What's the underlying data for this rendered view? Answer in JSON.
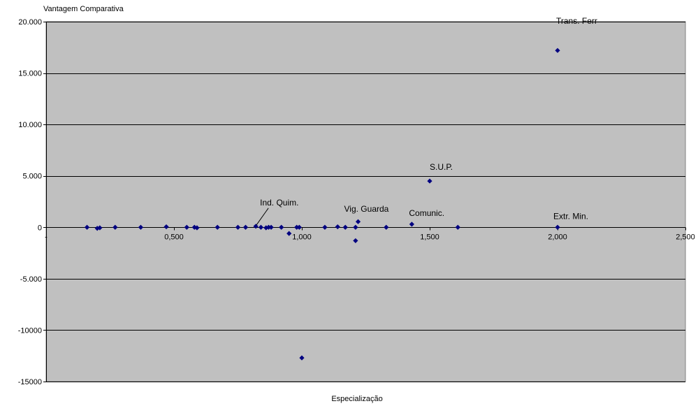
{
  "chart_data": {
    "type": "scatter",
    "title": "",
    "xlabel": "Especialização",
    "ylabel": "Vantagem Comparativa",
    "xlim": [
      0,
      2.5
    ],
    "ylim": [
      -15000,
      20000
    ],
    "x_ticks": [
      {
        "value": 0,
        "label": "-"
      },
      {
        "value": 0.5,
        "label": "0,500"
      },
      {
        "value": 1.0,
        "label": "1,000"
      },
      {
        "value": 1.5,
        "label": "1,500"
      },
      {
        "value": 2.0,
        "label": "2,000"
      },
      {
        "value": 2.5,
        "label": "2,500"
      }
    ],
    "y_ticks": [
      {
        "value": 20000,
        "label": "20.000"
      },
      {
        "value": 15000,
        "label": "15.000"
      },
      {
        "value": 10000,
        "label": "10.000"
      },
      {
        "value": 5000,
        "label": "5.000"
      },
      {
        "value": 0,
        "label": "0"
      },
      {
        "value": -5000,
        "label": "-5.000"
      },
      {
        "value": -10000,
        "label": "-10000"
      },
      {
        "value": -15000,
        "label": "-15000"
      }
    ],
    "grid": true,
    "plot_bg": "#c0c0c0",
    "marker_color": "#000080",
    "points": [
      {
        "x": 0.16,
        "y": 0
      },
      {
        "x": 0.2,
        "y": -100
      },
      {
        "x": 0.21,
        "y": -50
      },
      {
        "x": 0.27,
        "y": 0
      },
      {
        "x": 0.37,
        "y": 0
      },
      {
        "x": 0.47,
        "y": 50
      },
      {
        "x": 0.55,
        "y": 0
      },
      {
        "x": 0.58,
        "y": 0
      },
      {
        "x": 0.59,
        "y": -50
      },
      {
        "x": 0.67,
        "y": 0
      },
      {
        "x": 0.75,
        "y": 0
      },
      {
        "x": 0.78,
        "y": 0
      },
      {
        "x": 0.82,
        "y": 100,
        "label": "Ind. Quim."
      },
      {
        "x": 0.84,
        "y": 0
      },
      {
        "x": 0.86,
        "y": -50
      },
      {
        "x": 0.87,
        "y": 0
      },
      {
        "x": 0.88,
        "y": 0
      },
      {
        "x": 0.92,
        "y": 0
      },
      {
        "x": 0.95,
        "y": -600
      },
      {
        "x": 0.98,
        "y": 0
      },
      {
        "x": 0.99,
        "y": 0
      },
      {
        "x": 1.0,
        "y": -12700
      },
      {
        "x": 1.09,
        "y": 0
      },
      {
        "x": 1.14,
        "y": 50
      },
      {
        "x": 1.17,
        "y": 0
      },
      {
        "x": 1.21,
        "y": -1300
      },
      {
        "x": 1.21,
        "y": 0
      },
      {
        "x": 1.22,
        "y": 550,
        "label": "Vig. Guarda"
      },
      {
        "x": 1.33,
        "y": 0
      },
      {
        "x": 1.43,
        "y": 300,
        "label": "Comunic."
      },
      {
        "x": 1.5,
        "y": 4500,
        "label": "S.U.P."
      },
      {
        "x": 1.61,
        "y": 0
      },
      {
        "x": 2.0,
        "y": 17200,
        "label": "Trans. Ferr"
      },
      {
        "x": 2.0,
        "y": 0,
        "label": "Extr. Min."
      }
    ]
  }
}
